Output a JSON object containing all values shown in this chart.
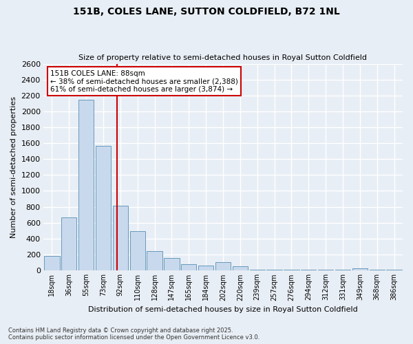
{
  "title": "151B, COLES LANE, SUTTON COLDFIELD, B72 1NL",
  "subtitle": "Size of property relative to semi-detached houses in Royal Sutton Coldfield",
  "xlabel": "Distribution of semi-detached houses by size in Royal Sutton Coldfield",
  "ylabel": "Number of semi-detached properties",
  "categories": [
    "18sqm",
    "36sqm",
    "55sqm",
    "73sqm",
    "92sqm",
    "110sqm",
    "128sqm",
    "147sqm",
    "165sqm",
    "184sqm",
    "202sqm",
    "220sqm",
    "239sqm",
    "257sqm",
    "276sqm",
    "294sqm",
    "312sqm",
    "331sqm",
    "349sqm",
    "368sqm",
    "386sqm"
  ],
  "values": [
    180,
    670,
    2150,
    1570,
    810,
    490,
    240,
    160,
    80,
    60,
    100,
    55,
    5,
    10,
    5,
    5,
    5,
    5,
    30,
    5,
    10
  ],
  "bar_color": "#c9d9ed",
  "bar_edge_color": "#6699bb",
  "vline_color": "#cc0000",
  "annotation_title": "151B COLES LANE: 88sqm",
  "annotation_line1": "← 38% of semi-detached houses are smaller (2,388)",
  "annotation_line2": "61% of semi-detached houses are larger (3,874) →",
  "annotation_box_edgecolor": "#cc0000",
  "ylim": [
    0,
    2600
  ],
  "yticks": [
    0,
    200,
    400,
    600,
    800,
    1000,
    1200,
    1400,
    1600,
    1800,
    2000,
    2200,
    2400,
    2600
  ],
  "bg_color": "#e8eef5",
  "grid_color": "#ffffff",
  "footer_line1": "Contains HM Land Registry data © Crown copyright and database right 2025.",
  "footer_line2": "Contains public sector information licensed under the Open Government Licence v3.0."
}
